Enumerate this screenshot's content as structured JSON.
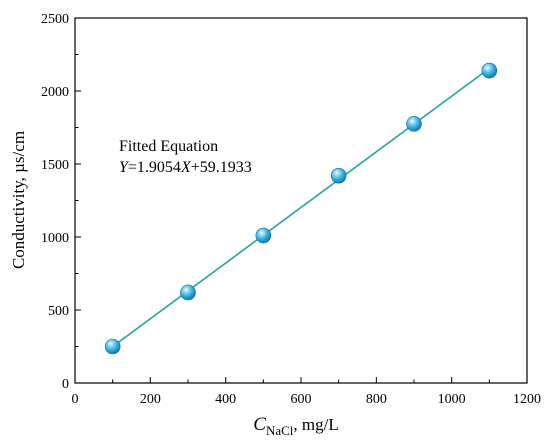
{
  "chart_data": {
    "type": "scatter",
    "xlabel": {
      "symbol": "C",
      "subscript": "NaCl",
      "unit": ",  mg/L"
    },
    "ylabel": "Conductivity, µs/cm",
    "xlim": [
      0,
      1200
    ],
    "ylim": [
      0,
      2500
    ],
    "xticks": [
      "0",
      "200",
      "400",
      "600",
      "800",
      "1000",
      "1200"
    ],
    "yticks": [
      "0",
      "500",
      "1000",
      "1500",
      "2000",
      "2500"
    ],
    "grid": false,
    "series": [
      {
        "x": [
          100,
          300,
          500,
          700,
          900,
          1100
        ],
        "y": [
          250,
          620,
          1010,
          1420,
          1775,
          2140
        ]
      }
    ],
    "fit_line": {
      "slope": 1.9054,
      "intercept": 59.1933,
      "x_range": [
        100,
        1100
      ]
    },
    "annotation": {
      "line1": "Fitted Equation",
      "eq_y": "Y",
      "eq_mid": "=1.9054",
      "eq_x": "X",
      "eq_end": "+59.1933"
    },
    "colors": {
      "line": "#22a59a",
      "marker": "#2ea6d8",
      "marker_dark": "#0a6fa3",
      "axis": "#000000"
    }
  }
}
